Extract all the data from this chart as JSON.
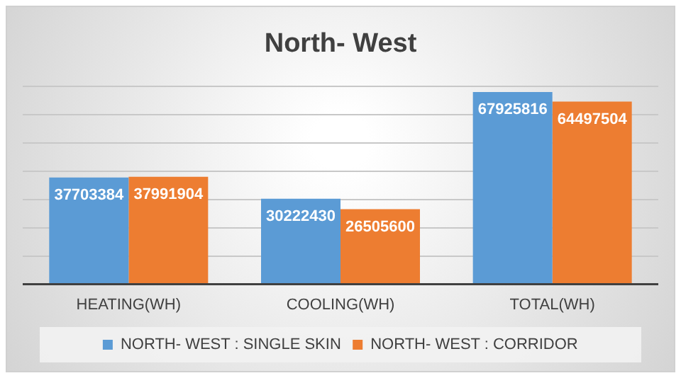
{
  "chart_data": {
    "type": "bar",
    "title": "North- West",
    "categories": [
      "HEATING(WH)",
      "COOLING(WH)",
      "TOTAL(WH)"
    ],
    "series": [
      {
        "name": "NORTH- WEST : SINGLE SKIN",
        "color": "#5b9bd5",
        "values": [
          37703384,
          30222430,
          67925816
        ]
      },
      {
        "name": "NORTH- WEST : CORRIDOR",
        "color": "#ed7d31",
        "values": [
          37991904,
          26505600,
          64497504
        ]
      }
    ],
    "ylim": [
      0,
      70000000
    ],
    "yticks": [
      {
        "value": 0,
        "label": null
      },
      {
        "value": 10000000,
        "label": null
      },
      {
        "value": 20000000,
        "label": null
      },
      {
        "value": 30000000,
        "label": null
      },
      {
        "value": 40000000,
        "label": null
      },
      {
        "value": 50000000,
        "label": null
      },
      {
        "value": 60000000,
        "label": null
      },
      {
        "value": 70000000,
        "label": null
      }
    ],
    "tick_labels": "x",
    "grid": "y",
    "legend": "bottom",
    "data_labels": true
  }
}
